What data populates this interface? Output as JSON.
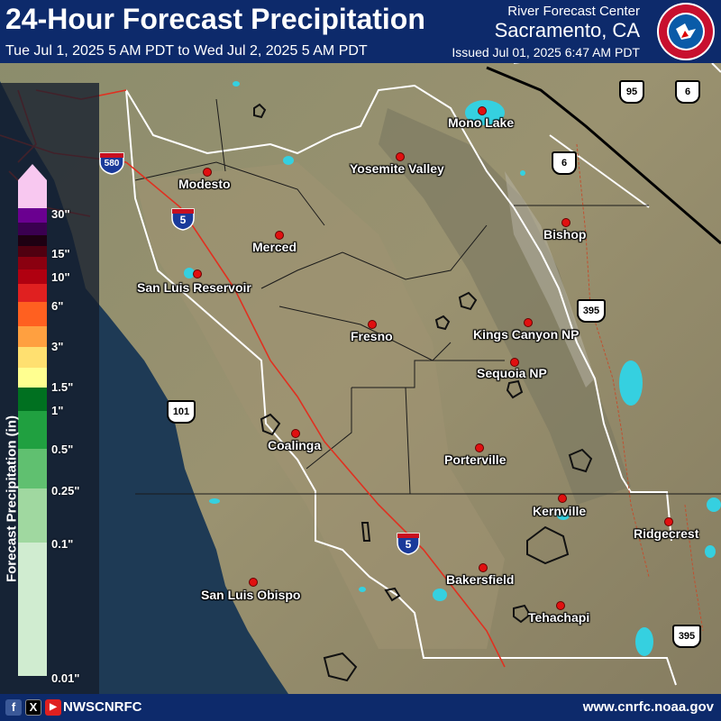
{
  "header": {
    "title": "24-Hour Forecast Precipitation",
    "period": "Tue Jul 1, 2025 5 AM PDT to Wed Jul 2, 2025 5 AM PDT",
    "org": "River Forecast Center",
    "location": "Sacramento, CA",
    "issued": "Issued Jul 01, 2025 6:47 AM PDT",
    "logo_icon": "nws-logo-icon",
    "logo_text": "NATIONAL WEATHER SERVICE"
  },
  "footer": {
    "handle": "NWSCNRFC",
    "url": "www.cnrfc.noaa.gov",
    "social": [
      "f",
      "X",
      "▶"
    ]
  },
  "legend": {
    "title": "Forecast Precipitation (in)",
    "labels": [
      "30\"",
      "15\"",
      "10\"",
      "6\"",
      "3\"",
      "1.5\"",
      "1\"",
      "0.5\"",
      "0.25\"",
      "0.1\"",
      "0.01\""
    ]
  },
  "cities": [
    {
      "name": "Mono Lake"
    },
    {
      "name": "Yosemite Valley"
    },
    {
      "name": "Modesto"
    },
    {
      "name": "Merced"
    },
    {
      "name": "Bishop"
    },
    {
      "name": "San Luis Reservoir"
    },
    {
      "name": "Fresno"
    },
    {
      "name": "Kings Canyon NP"
    },
    {
      "name": "Sequoia NP"
    },
    {
      "name": "Coalinga"
    },
    {
      "name": "Porterville"
    },
    {
      "name": "Kernville"
    },
    {
      "name": "Ridgecrest"
    },
    {
      "name": "Bakersfield"
    },
    {
      "name": "San Luis Obispo"
    },
    {
      "name": "Tehachapi"
    }
  ],
  "highways": {
    "us95": "95",
    "us6a": "6",
    "us6b": "6",
    "us395a": "395",
    "us395b": "395",
    "us101": "101",
    "i580": "580",
    "i5a": "5",
    "i5b": "5"
  },
  "colors": {
    "header_bg": "#0d2a6b",
    "terrain": "#8a8a6a",
    "water": "#35d0e0",
    "interstate": "#e03020",
    "county_border": "#ffffff"
  }
}
